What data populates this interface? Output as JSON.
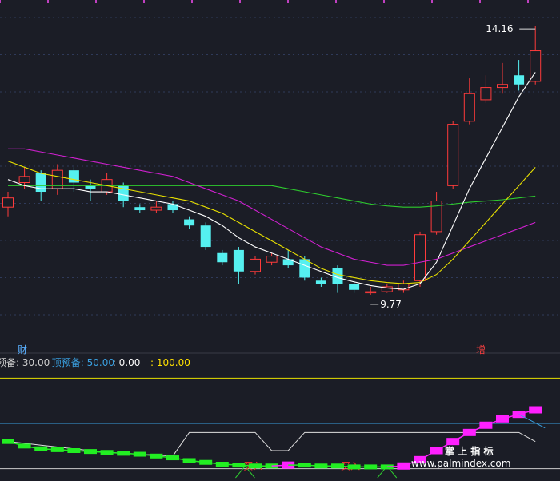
{
  "chart_data": {
    "type": "candlestick",
    "main": {
      "price_range": [
        9.0,
        14.5
      ],
      "high_label": "14.16",
      "low_label": "9.77",
      "left_marker": "财",
      "right_marker": "增",
      "candles": [
        {
          "o": 11.2,
          "c": 11.35,
          "h": 11.45,
          "l": 11.05
        },
        {
          "o": 11.6,
          "c": 11.7,
          "h": 11.85,
          "l": 11.5
        },
        {
          "o": 11.75,
          "c": 11.45,
          "h": 11.8,
          "l": 11.3
        },
        {
          "o": 11.5,
          "c": 11.8,
          "h": 11.9,
          "l": 11.4
        },
        {
          "o": 11.8,
          "c": 11.6,
          "h": 11.85,
          "l": 11.45
        },
        {
          "o": 11.55,
          "c": 11.5,
          "h": 11.65,
          "l": 11.3
        },
        {
          "o": 11.45,
          "c": 11.65,
          "h": 11.75,
          "l": 11.4
        },
        {
          "o": 11.55,
          "c": 11.3,
          "h": 11.6,
          "l": 11.2
        },
        {
          "o": 11.2,
          "c": 11.15,
          "h": 11.25,
          "l": 11.1
        },
        {
          "o": 11.15,
          "c": 11.2,
          "h": 11.3,
          "l": 11.1
        },
        {
          "o": 11.25,
          "c": 11.15,
          "h": 11.3,
          "l": 11.1
        },
        {
          "o": 11.0,
          "c": 10.9,
          "h": 11.05,
          "l": 10.85
        },
        {
          "o": 10.9,
          "c": 10.55,
          "h": 10.95,
          "l": 10.5
        },
        {
          "o": 10.45,
          "c": 10.3,
          "h": 10.5,
          "l": 10.25
        },
        {
          "o": 10.5,
          "c": 10.15,
          "h": 10.55,
          "l": 9.95
        },
        {
          "o": 10.15,
          "c": 10.35,
          "h": 10.4,
          "l": 10.1
        },
        {
          "o": 10.3,
          "c": 10.4,
          "h": 10.45,
          "l": 10.25
        },
        {
          "o": 10.35,
          "c": 10.25,
          "h": 10.5,
          "l": 10.2
        },
        {
          "o": 10.35,
          "c": 10.05,
          "h": 10.4,
          "l": 10.0
        },
        {
          "o": 10.0,
          "c": 9.95,
          "h": 10.05,
          "l": 9.9
        },
        {
          "o": 10.2,
          "c": 9.95,
          "h": 10.25,
          "l": 9.8
        },
        {
          "o": 9.95,
          "c": 9.85,
          "h": 10.0,
          "l": 9.8
        },
        {
          "o": 9.82,
          "c": 9.82,
          "h": 9.9,
          "l": 9.77
        },
        {
          "o": 9.82,
          "c": 9.9,
          "h": 9.95,
          "l": 9.8
        },
        {
          "o": 9.85,
          "c": 9.95,
          "h": 10.0,
          "l": 9.8
        },
        {
          "o": 10.0,
          "c": 10.75,
          "h": 10.8,
          "l": 9.9
        },
        {
          "o": 10.8,
          "c": 11.3,
          "h": 11.45,
          "l": 10.75
        },
        {
          "o": 11.55,
          "c": 12.55,
          "h": 12.6,
          "l": 11.5
        },
        {
          "o": 12.6,
          "c": 13.05,
          "h": 13.3,
          "l": 12.55
        },
        {
          "o": 12.95,
          "c": 13.15,
          "h": 13.35,
          "l": 12.9
        },
        {
          "o": 13.15,
          "c": 13.2,
          "h": 13.55,
          "l": 13.05
        },
        {
          "o": 13.35,
          "c": 13.2,
          "h": 13.6,
          "l": 13.1
        },
        {
          "o": 13.25,
          "c": 13.75,
          "h": 14.16,
          "l": 13.2
        }
      ],
      "ma_white": [
        11.65,
        11.55,
        11.5,
        11.5,
        11.5,
        11.45,
        11.45,
        11.4,
        11.35,
        11.3,
        11.25,
        11.15,
        11.05,
        10.9,
        10.7,
        10.55,
        10.45,
        10.35,
        10.25,
        10.15,
        10.05,
        9.98,
        9.92,
        9.88,
        9.86,
        9.95,
        10.3,
        10.9,
        11.5,
        12.0,
        12.5,
        13.0,
        13.4
      ],
      "ma_yellow": [
        11.95,
        11.85,
        11.75,
        11.7,
        11.65,
        11.6,
        11.55,
        11.5,
        11.45,
        11.4,
        11.35,
        11.3,
        11.2,
        11.1,
        10.95,
        10.8,
        10.65,
        10.5,
        10.35,
        10.2,
        10.1,
        10.05,
        10.0,
        9.97,
        9.95,
        9.97,
        10.1,
        10.35,
        10.65,
        10.95,
        11.25,
        11.55,
        11.85
      ],
      "ma_magenta": [
        12.15,
        12.15,
        12.1,
        12.05,
        12.0,
        11.95,
        11.9,
        11.85,
        11.8,
        11.75,
        11.7,
        11.6,
        11.5,
        11.4,
        11.3,
        11.15,
        11.0,
        10.85,
        10.7,
        10.55,
        10.45,
        10.35,
        10.3,
        10.25,
        10.25,
        10.3,
        10.35,
        10.45,
        10.55,
        10.65,
        10.75,
        10.85,
        10.95
      ],
      "ma_green": [
        11.55,
        11.55,
        11.55,
        11.55,
        11.55,
        11.55,
        11.55,
        11.55,
        11.55,
        11.55,
        11.55,
        11.55,
        11.55,
        11.55,
        11.55,
        11.55,
        11.55,
        11.5,
        11.45,
        11.4,
        11.35,
        11.3,
        11.25,
        11.22,
        11.2,
        11.2,
        11.22,
        11.25,
        11.28,
        11.3,
        11.32,
        11.35,
        11.38
      ]
    },
    "indicator": {
      "range": [
        -10,
        110
      ],
      "legend": [
        {
          "text": "预备: 30.00",
          "color": "#cfcfcf"
        },
        {
          "text": "顶预备: 50.00",
          "color": "#3aa0e0"
        },
        {
          "text": ": 0.00",
          "color": "#ffffff"
        },
        {
          "text": ": 100.00",
          "color": "#ffe000"
        }
      ],
      "buy_label_1": "买入",
      "buy_label_2": "买入",
      "levels": {
        "top": 100,
        "mid": 50,
        "bottom": 0
      },
      "main_line": [
        30,
        25,
        22,
        21,
        20,
        19,
        18,
        17,
        16,
        14,
        12,
        9,
        7,
        5,
        4,
        3,
        3,
        4,
        4,
        3,
        3,
        2,
        2,
        2,
        3,
        10,
        20,
        30,
        40,
        48,
        55,
        60,
        65
      ],
      "aux_line": [
        30,
        28,
        26,
        24,
        22,
        20,
        18,
        17,
        16,
        15,
        14,
        40,
        40,
        40,
        40,
        40,
        20,
        20,
        40,
        40,
        40,
        40,
        40,
        40,
        40,
        40,
        40,
        40,
        40,
        40,
        40,
        40,
        30
      ]
    },
    "watermark": {
      "title": "掌 上 指 标",
      "url": "www.palmindex.com"
    }
  }
}
